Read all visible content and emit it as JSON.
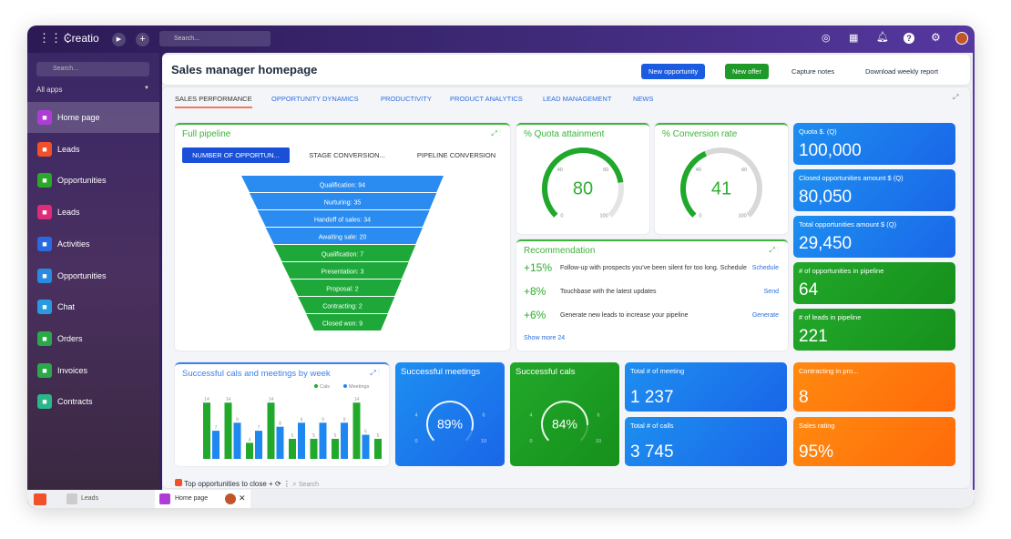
{
  "topbar": {
    "brand": "Creatio",
    "search_placeholder": "Search..."
  },
  "sidebar": {
    "search_placeholder": "Search...",
    "all_apps": "All apps",
    "items": [
      {
        "label": "Home page",
        "icon": "home-icon",
        "color": "#b03cd8"
      },
      {
        "label": "Leads",
        "icon": "leads-icon",
        "color": "#f0502a"
      },
      {
        "label": "Opportunities",
        "icon": "funnel-icon",
        "color": "#2aa82a"
      },
      {
        "label": "Leads",
        "icon": "leads-icon",
        "color": "#e02a7a"
      },
      {
        "label": "Activities",
        "icon": "flag-icon",
        "color": "#2a6ae0"
      },
      {
        "label": "Opportunities",
        "icon": "funnel-icon",
        "color": "#2a8ae0"
      },
      {
        "label": "Chat",
        "icon": "chat-icon",
        "color": "#2a9ae0"
      },
      {
        "label": "Orders",
        "icon": "cart-icon",
        "color": "#2aa84a"
      },
      {
        "label": "Invoices",
        "icon": "invoice-icon",
        "color": "#2aa84a"
      },
      {
        "label": "Contracts",
        "icon": "contract-icon",
        "color": "#2ab88a"
      }
    ]
  },
  "header": {
    "title": "Sales manager homepage",
    "new_opportunity": "New opportunity",
    "new_offer": "New offer",
    "capture_notes": "Capture notes",
    "download_report": "Download weekly report"
  },
  "tabs": [
    "SALES PERFORMANCE",
    "OPPORTUNITY DYNAMICS",
    "PRODUCTIVITY",
    "PRODUCT ANALYTICS",
    "LEAD MANAGEMENT",
    "NEWS"
  ],
  "pipeline": {
    "title": "Full pipeline",
    "modes": [
      "NUMBER OF OPPORTUN...",
      "STAGE CONVERSION...",
      "PIPELINE CONVERSION"
    ],
    "stages": [
      {
        "label": "Qualification: 94",
        "group": "lead"
      },
      {
        "label": "Nurturing: 35",
        "group": "lead"
      },
      {
        "label": "Handoff of sales: 34",
        "group": "lead"
      },
      {
        "label": "Awaiting sale: 20",
        "group": "lead"
      },
      {
        "label": "Qualification: 7",
        "group": "opp"
      },
      {
        "label": "Presentation: 3",
        "group": "opp"
      },
      {
        "label": "Proposal: 2",
        "group": "opp"
      },
      {
        "label": "Contracting: 2",
        "group": "opp"
      },
      {
        "label": "Closed won: 9",
        "group": "opp"
      }
    ]
  },
  "quota": {
    "title": "% Quota attainment",
    "value": "80",
    "ticks": [
      "0",
      "40",
      "60",
      "100"
    ],
    "fraction": 0.8
  },
  "conversion": {
    "title": "% Conversion rate",
    "value": "41",
    "ticks": [
      "0",
      "40",
      "60",
      "100"
    ],
    "fraction": 0.41
  },
  "recommendation": {
    "title": "Recommendation",
    "items": [
      {
        "pct": "+15%",
        "text": "Follow-up with prospects you've been silent for too long. Schedule",
        "action": "Schedule"
      },
      {
        "pct": "+8%",
        "text": "Touchbase with the latest updates",
        "action": "Send"
      },
      {
        "pct": "+6%",
        "text": "Generate new leads to increase your pipeline",
        "action": "Generate"
      }
    ],
    "show_more": "Show more 24"
  },
  "kpis": [
    {
      "label": "Quota $. (Q)",
      "value": "100,000",
      "color": "blue"
    },
    {
      "label": "Closed opportunities amount $ (Q)",
      "value": "80,050",
      "color": "blue"
    },
    {
      "label": "Total opportunities amount $ (Q)",
      "value": "29,450",
      "color": "blue"
    },
    {
      "label": "# of opportunities in pipeline",
      "value": "64",
      "color": "green"
    },
    {
      "label": "# of leads in pipeline",
      "value": "221",
      "color": "green"
    }
  ],
  "chart_data": {
    "type": "bar",
    "title": "Successful cals and meetings by week",
    "legend_position": "top-right",
    "series": [
      {
        "name": "Cals",
        "color": "#22a82a",
        "values": [
          14,
          14,
          4,
          14,
          5,
          5,
          5,
          14,
          5
        ]
      },
      {
        "name": "Meetings",
        "color": "#1e88f0",
        "values": [
          7,
          9,
          7,
          8,
          9,
          9,
          9,
          6,
          null
        ]
      }
    ],
    "ylim": [
      0,
      16
    ]
  },
  "meetings": {
    "title": "Successful meetings",
    "value": "89%",
    "ticks": [
      "0",
      "4",
      "6",
      "10"
    ],
    "fraction": 0.89
  },
  "cals": {
    "title": "Successful cals",
    "value": "84%",
    "ticks": [
      "0",
      "4",
      "6",
      "10"
    ],
    "fraction": 0.84
  },
  "totals": [
    {
      "label": "Total # of meeting",
      "value": "1 237"
    },
    {
      "label": "Total # of calls",
      "value": "3 745"
    }
  ],
  "orange": [
    {
      "label": "Contracting in pro...",
      "value": "8"
    },
    {
      "label": "Sales rating",
      "value": "95%"
    }
  ],
  "bottom_list": {
    "title": "Top opportunities to close",
    "search": "Search"
  },
  "taskbar": {
    "items": [
      "Leads",
      "Home page"
    ]
  }
}
